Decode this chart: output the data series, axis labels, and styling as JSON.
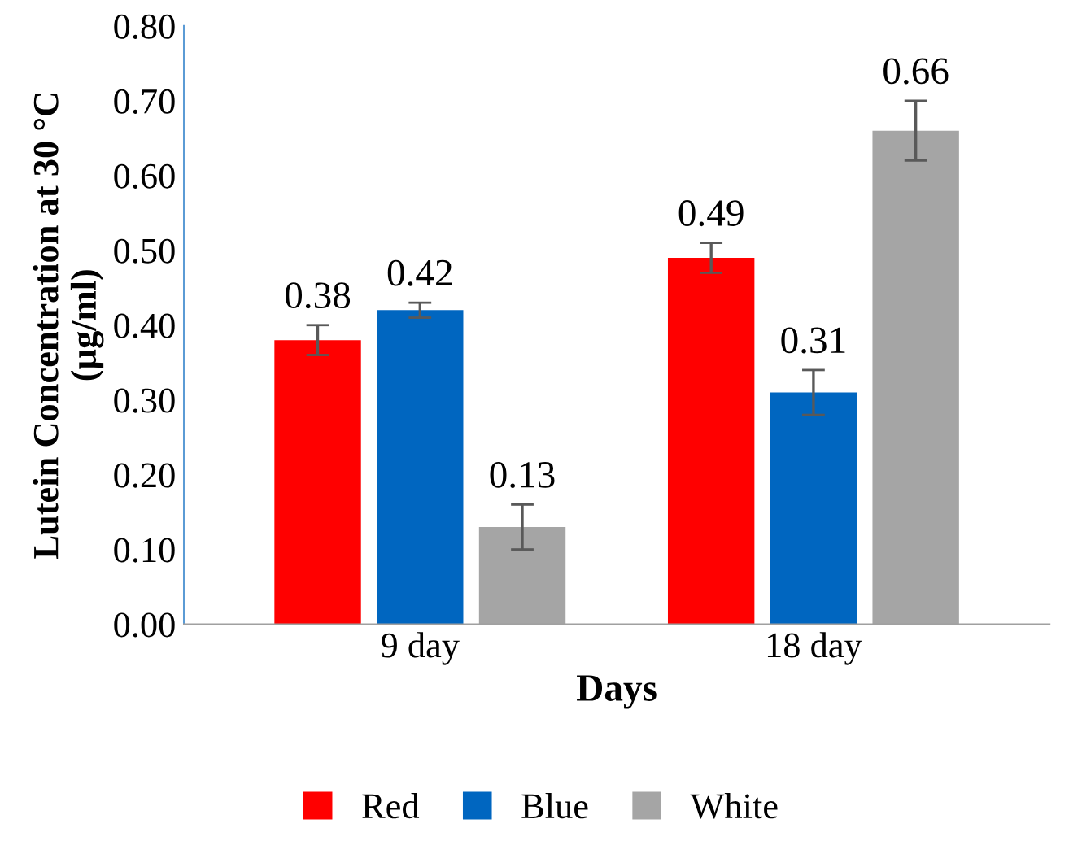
{
  "chart_data": {
    "type": "bar",
    "xlabel": "Days",
    "ylabel": "Lutein Concentration at 30 °C\n(µg/ml)",
    "categories": [
      "9 day",
      "18 day"
    ],
    "series": [
      {
        "name": "Red",
        "color": "#ff0000",
        "values": [
          0.38,
          0.49
        ],
        "errors": [
          0.02,
          0.02
        ]
      },
      {
        "name": "Blue",
        "color": "#0066c0",
        "values": [
          0.42,
          0.31
        ],
        "errors": [
          0.01,
          0.03
        ]
      },
      {
        "name": "White",
        "color": "#a5a5a5",
        "values": [
          0.13,
          0.66
        ],
        "errors": [
          0.03,
          0.04
        ]
      }
    ],
    "ylim": [
      0,
      0.8
    ],
    "yticks": [
      {
        "value": 0,
        "label": "0.00"
      },
      {
        "value": 0.1,
        "label": "0.10"
      },
      {
        "value": 0.2,
        "label": "0.20"
      },
      {
        "value": 0.3,
        "label": "0.30"
      },
      {
        "value": 0.4,
        "label": "0.40"
      },
      {
        "value": 0.5,
        "label": "0.50"
      },
      {
        "value": 0.6,
        "label": "0.60"
      },
      {
        "value": 0.7,
        "label": "0.70"
      },
      {
        "value": 0.8,
        "label": "0.80"
      }
    ],
    "data_labels": true,
    "grid": false,
    "legend": "bottom"
  }
}
